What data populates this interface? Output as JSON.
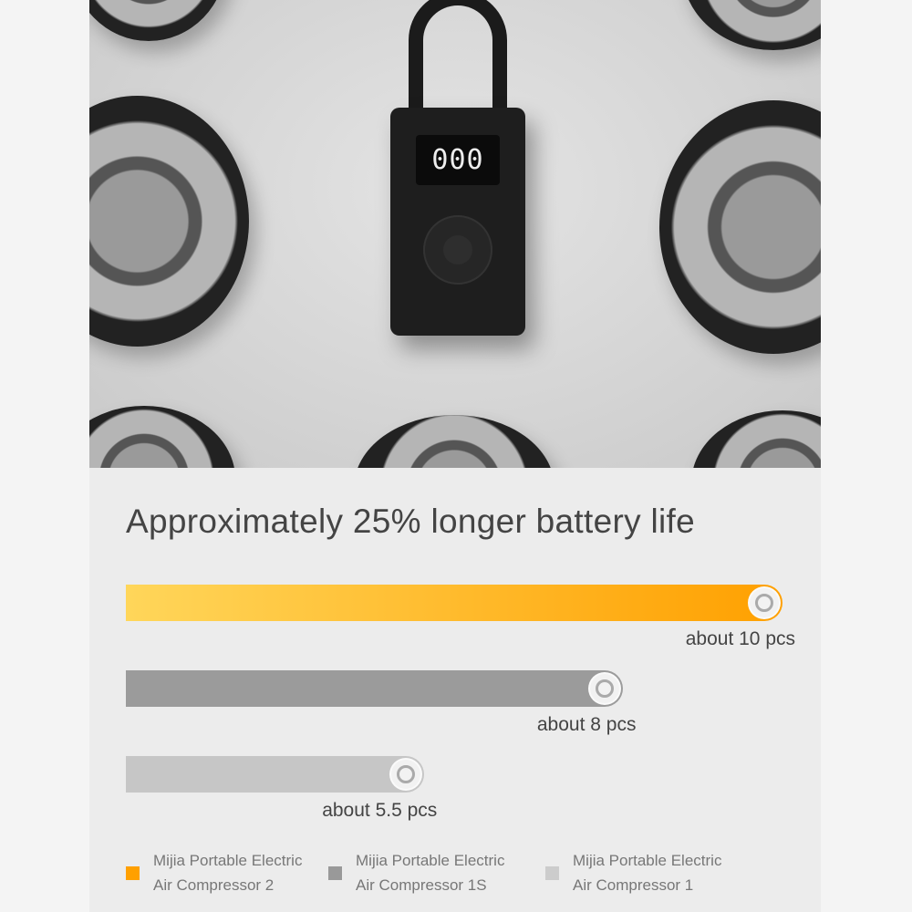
{
  "photo": {
    "device_display": "000"
  },
  "chart_data": {
    "type": "bar",
    "orientation": "horizontal",
    "title": "Approximately 25% longer battery life",
    "categories": [
      "Mijia Portable Electric Air Compressor 2",
      "Mijia Portable Electric Air Compressor 1S",
      "Mijia Portable Electric Air Compressor 1"
    ],
    "values": [
      10,
      8,
      5.5
    ],
    "unit": "pcs",
    "data_labels": [
      "about 10 pcs",
      "about 8 pcs",
      "about 5.5 pcs"
    ],
    "colors": [
      "#ffa500",
      "#9b9b9b",
      "#c6c6c6"
    ],
    "xlim": [
      1.75,
      10
    ],
    "grid": false,
    "legend": {
      "placement": "bottom",
      "entries": [
        {
          "line1": "Mijia Portable Electric",
          "line2": "Air Compressor 2",
          "color": "#ffa000"
        },
        {
          "line1": "Mijia Portable Electric",
          "line2": "Air Compressor 1S",
          "color": "#999999"
        },
        {
          "line1": "Mijia Portable Electric",
          "line2": "Air Compressor 1",
          "color": "#cccccc"
        }
      ]
    }
  }
}
